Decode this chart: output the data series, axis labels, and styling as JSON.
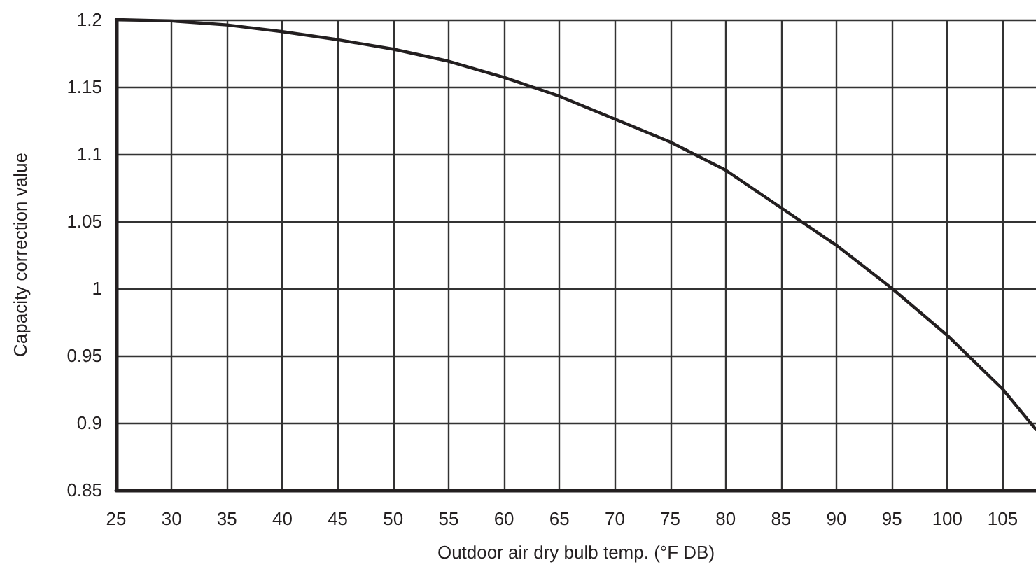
{
  "chart_data": {
    "type": "line",
    "xlabel": "Outdoor air dry bulb temp. (°F DB)",
    "ylabel": "Capacity correction value",
    "x": [
      25,
      30,
      35,
      40,
      45,
      50,
      55,
      60,
      65,
      70,
      75,
      80,
      85,
      90,
      95,
      100,
      105,
      108
    ],
    "series": [
      {
        "color": "#231f20",
        "values": [
          1.2,
          1.199,
          1.196,
          1.191,
          1.185,
          1.178,
          1.169,
          1.157,
          1.143,
          1.126,
          1.109,
          1.088,
          1.06,
          1.032,
          1.0,
          0.965,
          0.925,
          0.895
        ]
      }
    ],
    "xlim": [
      25,
      108
    ],
    "xticks": [
      25,
      30,
      35,
      40,
      45,
      50,
      55,
      60,
      65,
      70,
      75,
      80,
      85,
      90,
      95,
      100,
      105
    ],
    "ylim": [
      0.85,
      1.2
    ],
    "yticks": [
      0.85,
      0.9,
      0.95,
      1,
      1.05,
      1.1,
      1.15,
      1.2
    ],
    "grid": true,
    "marker": "none",
    "line_style": "solid"
  }
}
